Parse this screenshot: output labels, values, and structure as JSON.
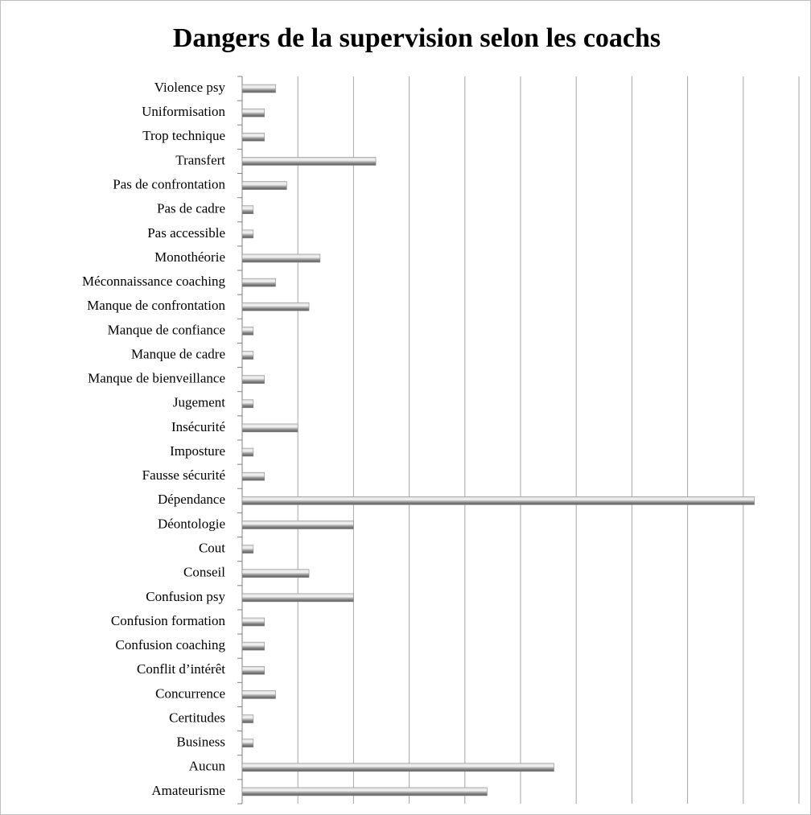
{
  "chart_data": {
    "type": "bar",
    "orientation": "horizontal",
    "title": "Dangers de la supervision selon les coachs",
    "categories": [
      "Violence psy",
      "Uniformisation",
      "Trop technique",
      "Transfert",
      "Pas de confrontation",
      "Pas de cadre",
      "Pas accessible",
      "Monothéorie",
      "Méconnaissance coaching",
      "Manque de confrontation",
      "Manque de confiance",
      "Manque de cadre",
      "Manque de bienveillance",
      "Jugement",
      "Insécurité",
      "Imposture",
      "Fausse sécurité",
      "Dépendance",
      "Déontologie",
      "Cout",
      "Conseil",
      "Confusion psy",
      "Confusion formation",
      "Confusion coaching",
      "Conflit d’intérêt",
      "Concurrence",
      "Certitudes",
      "Business",
      "Aucun",
      "Amateurisme"
    ],
    "values": [
      3,
      2,
      2,
      12,
      4,
      1,
      1,
      7,
      3,
      6,
      1,
      1,
      2,
      1,
      5,
      1,
      2,
      46,
      10,
      1,
      6,
      10,
      2,
      2,
      2,
      3,
      1,
      1,
      28,
      22
    ],
    "color": "#8c8c8c",
    "xlim": [
      0,
      50
    ],
    "xticks": [
      0,
      5,
      10,
      15,
      20,
      25,
      30,
      35,
      40,
      45,
      50
    ],
    "grid": true
  }
}
